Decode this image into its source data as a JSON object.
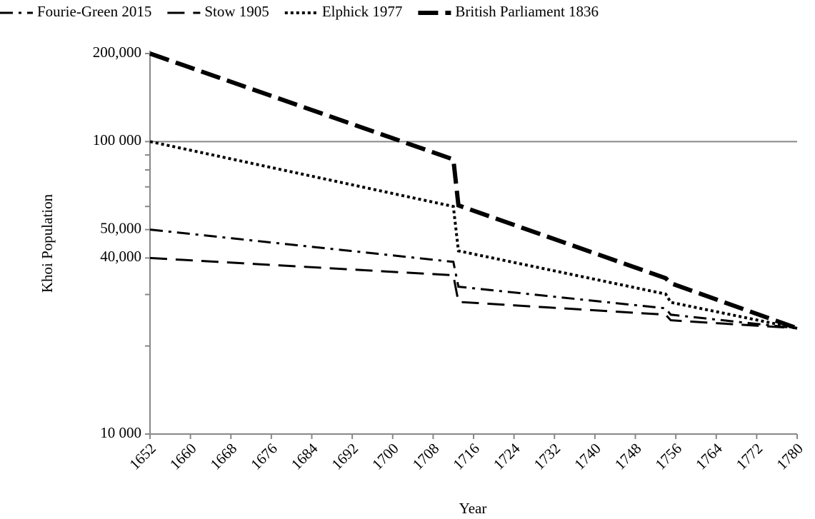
{
  "chart_data": {
    "type": "line",
    "x_label": "Year",
    "y_label": "Khoi Population",
    "x": [
      1652,
      1712,
      1713,
      1754,
      1755,
      1780
    ],
    "series": [
      {
        "name": "Fourie-Green 2015",
        "color": "#000000",
        "dash": "dash-dot",
        "values": [
          50000,
          38800,
          31900,
          26900,
          25600,
          23000
        ]
      },
      {
        "name": "Stow 1905",
        "color": "#000000",
        "dash": "dash",
        "values": [
          40000,
          34900,
          28300,
          25600,
          24500,
          23000
        ]
      },
      {
        "name": "Elphick 1977",
        "color": "#000000",
        "dash": "dot",
        "values": [
          100000,
          60000,
          42300,
          30100,
          28200,
          23000
        ]
      },
      {
        "name": "British Parliament 1836",
        "color": "#000000",
        "dash": "long-dash",
        "values": [
          200000,
          86900,
          60500,
          34100,
          32800,
          23000
        ]
      }
    ],
    "xlim": [
      1652,
      1780
    ],
    "xticks": [
      1652,
      1660,
      1668,
      1676,
      1684,
      1692,
      1700,
      1708,
      1716,
      1724,
      1732,
      1740,
      1748,
      1756,
      1764,
      1772,
      1780
    ],
    "ylim": [
      10000,
      200000
    ],
    "log_y": true,
    "yticks": [
      {
        "value": 10000,
        "label": "10 000"
      },
      {
        "value": 40000,
        "label": "40,000"
      },
      {
        "value": 50000,
        "label": "50,000"
      },
      {
        "value": 100000,
        "label": "100 000"
      },
      {
        "value": 200000,
        "label": "200,000"
      }
    ],
    "yticks_minor": [
      20000,
      30000,
      60000,
      70000,
      80000,
      90000
    ],
    "grid": "decades",
    "legend": "top"
  }
}
